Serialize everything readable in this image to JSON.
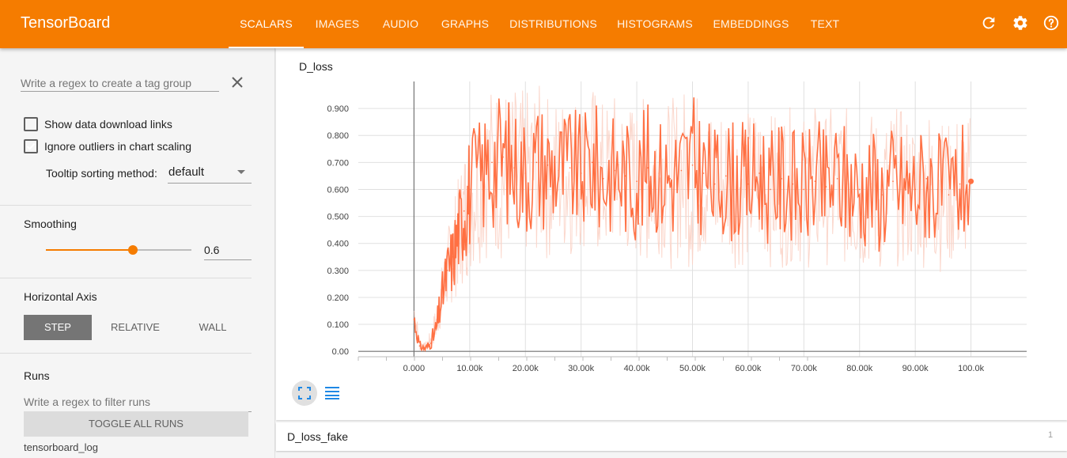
{
  "app": {
    "title": "TensorBoard"
  },
  "tabs": [
    {
      "label": "SCALARS",
      "active": true
    },
    {
      "label": "IMAGES"
    },
    {
      "label": "AUDIO"
    },
    {
      "label": "GRAPHS"
    },
    {
      "label": "DISTRIBUTIONS"
    },
    {
      "label": "HISTOGRAMS"
    },
    {
      "label": "EMBEDDINGS"
    },
    {
      "label": "TEXT"
    }
  ],
  "toolbar_icons": [
    "refresh-icon",
    "settings-icon",
    "help-icon"
  ],
  "sidebar": {
    "tag_regex_placeholder": "Write a regex to create a tag group",
    "show_download_label": "Show data download links",
    "show_download_checked": false,
    "ignore_outliers_label": "Ignore outliers in chart scaling",
    "ignore_outliers_checked": true,
    "tooltip_label": "Tooltip sorting method:",
    "tooltip_value": "default",
    "smoothing_title": "Smoothing",
    "smoothing_value": "0.6",
    "smoothing_fraction": 0.6,
    "haxis_title": "Horizontal Axis",
    "haxis_options": [
      "STEP",
      "RELATIVE",
      "WALL"
    ],
    "haxis_selected": "STEP",
    "runs_title": "Runs",
    "runs_regex_placeholder": "Write a regex to filter runs",
    "toggle_runs_label": "TOGGLE ALL RUNS",
    "runs": [
      "tensorboard_log"
    ]
  },
  "cards": [
    {
      "title": "D_loss",
      "count": ""
    },
    {
      "title": "D_loss_fake",
      "count": "1"
    }
  ],
  "colors": {
    "accent": "#f57c00",
    "series": "#ff7043",
    "series_raw": "#fbd3c6"
  },
  "chart_data": {
    "type": "line",
    "title": "D_loss",
    "xlabel": "",
    "ylabel": "",
    "xlim": [
      -10000,
      110000
    ],
    "ylim": [
      -0.02,
      1.0
    ],
    "x_ticks": [
      "0.000",
      "10.00k",
      "20.00k",
      "30.00k",
      "40.00k",
      "50.00k",
      "60.00k",
      "70.00k",
      "80.00k",
      "90.00k",
      "100.0k"
    ],
    "y_ticks": [
      "0.00",
      "0.100",
      "0.200",
      "0.300",
      "0.400",
      "0.500",
      "0.600",
      "0.700",
      "0.800",
      "0.900"
    ],
    "grid": true,
    "series": [
      {
        "smoothing": 0.6,
        "x": [
          0,
          1000,
          2000,
          3000,
          4000,
          5000,
          6000,
          7000,
          8000,
          9000,
          10000,
          12000,
          14000,
          16000,
          18000,
          20000,
          22000,
          24000,
          26000,
          28000,
          30000,
          32000,
          34000,
          36000,
          38000,
          40000,
          42000,
          44000,
          46000,
          48000,
          50000,
          52000,
          54000,
          56000,
          58000,
          60000,
          62000,
          64000,
          66000,
          68000,
          70000,
          72000,
          74000,
          76000,
          78000,
          80000,
          82000,
          84000,
          86000,
          88000,
          90000,
          92000,
          94000,
          96000,
          98000,
          100000
        ],
        "y": [
          0.12,
          0.02,
          0.01,
          0.03,
          0.08,
          0.2,
          0.3,
          0.35,
          0.45,
          0.52,
          0.6,
          0.65,
          0.7,
          0.72,
          0.68,
          0.66,
          0.7,
          0.69,
          0.67,
          0.68,
          0.66,
          0.7,
          0.64,
          0.67,
          0.65,
          0.63,
          0.68,
          0.66,
          0.64,
          0.67,
          0.69,
          0.66,
          0.62,
          0.65,
          0.63,
          0.62,
          0.66,
          0.6,
          0.64,
          0.62,
          0.6,
          0.63,
          0.61,
          0.64,
          0.62,
          0.6,
          0.62,
          0.58,
          0.63,
          0.61,
          0.6,
          0.64,
          0.6,
          0.58,
          0.62,
          0.63
        ],
        "low": [
          0.08,
          0.0,
          0.0,
          0.01,
          0.03,
          0.1,
          0.15,
          0.18,
          0.22,
          0.25,
          0.28,
          0.33,
          0.35,
          0.32,
          0.36,
          0.34,
          0.35,
          0.33,
          0.36,
          0.34,
          0.38,
          0.35,
          0.32,
          0.37,
          0.34,
          0.33,
          0.31,
          0.36,
          0.3,
          0.35,
          0.28,
          0.34,
          0.32,
          0.35,
          0.3,
          0.32,
          0.34,
          0.31,
          0.3,
          0.33,
          0.31,
          0.29,
          0.32,
          0.3,
          0.31,
          0.28,
          0.3,
          0.27,
          0.32,
          0.3,
          0.3,
          0.31,
          0.29,
          0.3,
          0.32,
          0.33
        ],
        "high": [
          0.22,
          0.05,
          0.03,
          0.08,
          0.18,
          0.32,
          0.45,
          0.55,
          0.65,
          0.75,
          0.88,
          0.95,
          1.0,
          1.0,
          0.98,
          0.97,
          1.0,
          0.96,
          0.95,
          0.98,
          0.95,
          1.0,
          0.93,
          0.96,
          0.94,
          0.92,
          0.97,
          0.95,
          0.93,
          0.98,
          1.0,
          0.94,
          0.9,
          0.95,
          0.92,
          0.9,
          0.94,
          0.88,
          0.92,
          0.9,
          0.88,
          0.92,
          0.89,
          0.93,
          0.9,
          0.88,
          0.9,
          0.86,
          0.92,
          0.89,
          0.88,
          0.93,
          0.88,
          0.85,
          0.9,
          0.88
        ]
      }
    ]
  }
}
